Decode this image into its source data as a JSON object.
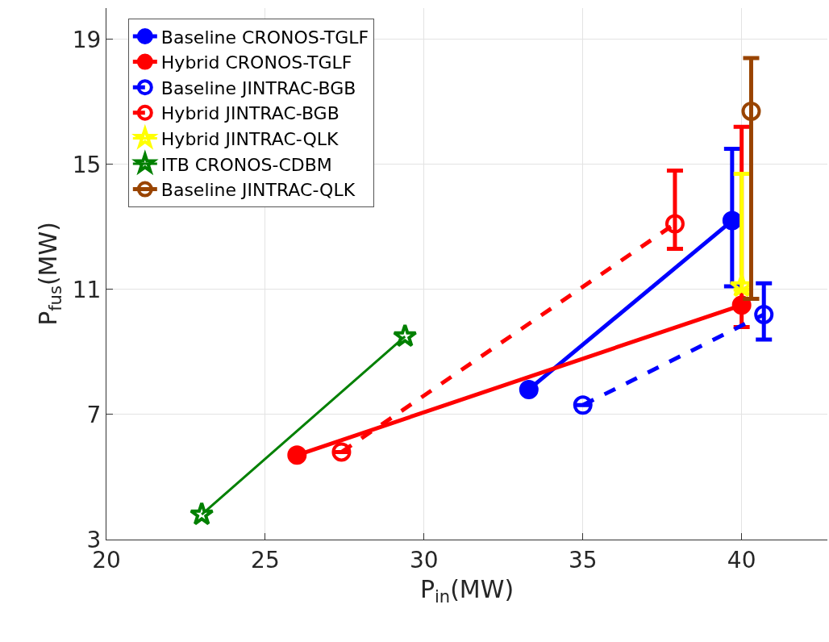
{
  "chart_data": {
    "type": "line",
    "xlabel": "P$_{in}$(MW)",
    "ylabel": "P$_{fus}$(MW)",
    "xlim": [
      20,
      42.7
    ],
    "ylim": [
      3,
      20
    ],
    "xticks": [
      20,
      25,
      30,
      35,
      40
    ],
    "yticks": [
      3,
      7,
      11,
      15,
      19
    ],
    "grid": true,
    "legend": "top left",
    "series": [
      {
        "name": "Baseline CRONOS-TGLF",
        "color": "#0000ff",
        "marker": "circle",
        "line_style": "solid",
        "x": [
          33.3,
          39.7
        ],
        "values": [
          7.8,
          13.2
        ],
        "errors": [
          null,
          [
            11.1,
            15.5
          ]
        ]
      },
      {
        "name": "Hybrid CRONOS-TGLF",
        "color": "#ff0000",
        "marker": "circle",
        "line_style": "solid",
        "x": [
          26.0,
          40.0
        ],
        "values": [
          5.7,
          10.5
        ],
        "errors": [
          null,
          [
            9.8,
            16.2
          ]
        ]
      },
      {
        "name": "Baseline JINTRAC-BGB",
        "color": "#0000ff",
        "marker": "open-circle",
        "line_style": "dashed",
        "x": [
          35.0,
          40.7
        ],
        "values": [
          7.3,
          10.2
        ],
        "errors": [
          null,
          [
            9.4,
            11.2
          ]
        ]
      },
      {
        "name": "Hybrid JINTRAC-BGB",
        "color": "#ff0000",
        "marker": "open-circle",
        "line_style": "dashed",
        "x": [
          27.4,
          37.9
        ],
        "values": [
          5.8,
          13.1
        ],
        "errors": [
          null,
          [
            12.3,
            14.8
          ]
        ]
      },
      {
        "name": "Hybrid JINTRAC-QLK",
        "color": "#ffff00",
        "marker": "star",
        "line_style": "solid",
        "x": [
          40.0
        ],
        "values": [
          11.1
        ],
        "errors": [
          [
            11.0,
            14.7
          ]
        ]
      },
      {
        "name": "ITB CRONOS-CDBM",
        "color": "#008000",
        "marker": "star",
        "line_style": "solid",
        "x": [
          23.0,
          29.4
        ],
        "values": [
          3.8,
          9.5
        ]
      },
      {
        "name": "Baseline JINTRAC-QLK",
        "color": "#994400",
        "marker": "open-circle",
        "line_style": "solid",
        "x": [
          40.3
        ],
        "values": [
          16.7
        ],
        "errors": [
          [
            10.7,
            18.4
          ]
        ]
      }
    ]
  }
}
